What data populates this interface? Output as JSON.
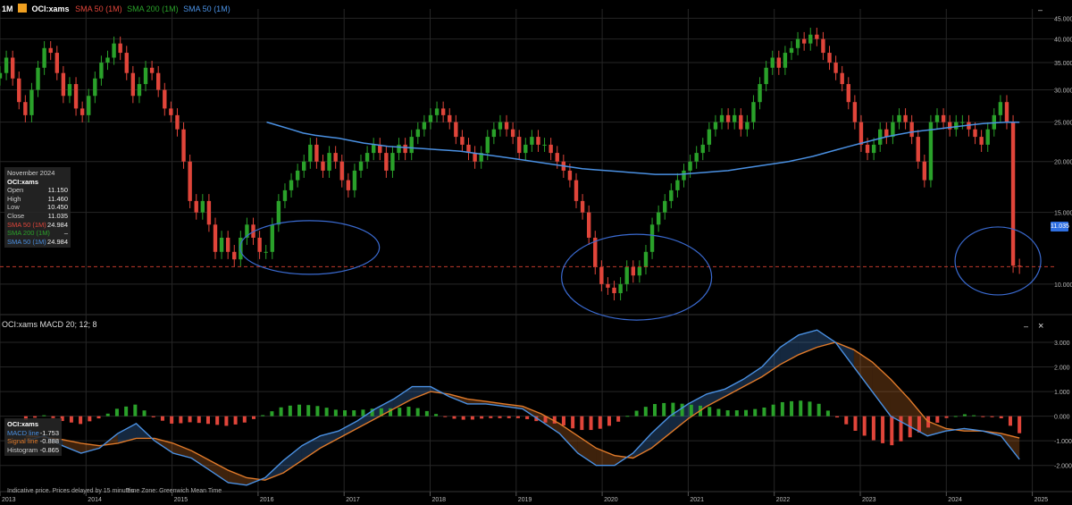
{
  "header": {
    "interval": "1M",
    "logo": "Euronext",
    "symbol": "OCI:xams",
    "sma50_red": "SMA 50 (1M)",
    "sma200": "SMA 200 (1M)",
    "sma50_blue": "SMA 50 (1M)",
    "collapse_btn": "–"
  },
  "info_box": {
    "date": "November 2024",
    "symbol": "OCI:xams",
    "rows": [
      {
        "label": "Open",
        "value": "11.150",
        "color": "#cccccc"
      },
      {
        "label": "High",
        "value": "11.460",
        "color": "#cccccc"
      },
      {
        "label": "Low",
        "value": "10.450",
        "color": "#cccccc"
      },
      {
        "label": "Close",
        "value": "11.035",
        "color": "#cccccc"
      },
      {
        "label": "SMA 50 (1M)",
        "value": "24.984",
        "color": "#e0453a"
      },
      {
        "label": "SMA 200 (1M)",
        "value": "–",
        "color": "#2aa12a"
      },
      {
        "label": "SMA 50 (1M)",
        "value": "24.984",
        "color": "#4a90e2"
      }
    ]
  },
  "price_tag": "11.035",
  "macd_header": {
    "title": "OCI:xams  MACD 20; 12; 8",
    "collapse_btn": "–",
    "close_btn": "×"
  },
  "macd_box": {
    "symbol": "OCI:xams",
    "rows": [
      {
        "label": "MACD line",
        "value": "-1.753",
        "color": "#4a90e2"
      },
      {
        "label": "Signal line",
        "value": "-0.888",
        "color": "#e07a2a"
      },
      {
        "label": "Histogram",
        "value": "-0.865",
        "color": "#cccccc"
      }
    ]
  },
  "footer": {
    "note": "Indicative price. Prices delayed by 15 minutes",
    "tz": "Time Zone: Greenwich Mean Time"
  },
  "colors": {
    "up": "#2aa12a",
    "down": "#e0453a",
    "sma": "#4a90e2",
    "signal": "#e07a2a",
    "ellipse": "#3a6ad0",
    "grid": "#262626"
  },
  "chart_data": [
    {
      "type": "candlestick",
      "interval": "monthly",
      "y_ticks": [
        "10.000",
        "15.000",
        "20.000",
        "25.000",
        "30.000",
        "35.000",
        "40.000",
        "45.000"
      ],
      "x_ticks": [
        "2013",
        "2014",
        "2015",
        "2016",
        "2017",
        "2018",
        "2019",
        "2020",
        "2021",
        "2022",
        "2023",
        "2024",
        "2025"
      ],
      "ylim": [
        8.5,
        46
      ],
      "scale": "log",
      "last_close": 11.035,
      "close_series": [
        33,
        36,
        32,
        28,
        26,
        30,
        34,
        38,
        37,
        33,
        29,
        31,
        27,
        26,
        29,
        32,
        35,
        36,
        39,
        37,
        33,
        29,
        31,
        34,
        33,
        30,
        27,
        26,
        24,
        20,
        16,
        15,
        16,
        14,
        12,
        13,
        12,
        11.5,
        13,
        14,
        13,
        12,
        12,
        14,
        16,
        17,
        18,
        19,
        20,
        22,
        20,
        19,
        21,
        20,
        18,
        17,
        19,
        20,
        21,
        22,
        21,
        19,
        21,
        22,
        21,
        23,
        24,
        25,
        26,
        27,
        26,
        25,
        23,
        22,
        21,
        20,
        21,
        23,
        24,
        25,
        24,
        23,
        21,
        22,
        23,
        22,
        22,
        21,
        20,
        19,
        18,
        16,
        15,
        13,
        11,
        10,
        9.8,
        9.5,
        10,
        11,
        10.5,
        11,
        12,
        14,
        15,
        16,
        17,
        18,
        19,
        20,
        21,
        22,
        24,
        25,
        26,
        25,
        26,
        24,
        25,
        28,
        31,
        34,
        36,
        34,
        37,
        38,
        40,
        39,
        41,
        40,
        37,
        35,
        33,
        31,
        28,
        25,
        22,
        21,
        22,
        24,
        23,
        25,
        26,
        25,
        23,
        20,
        18,
        25,
        26,
        25,
        24,
        25,
        25,
        24,
        23,
        22,
        24,
        26,
        28,
        25,
        11.1,
        11.035
      ],
      "sma50_series_from_2017": [
        25,
        24.5,
        24,
        23.5,
        23.2,
        23,
        22.8,
        22.5,
        22.2,
        22,
        21.8,
        21.7,
        21.6,
        21.5,
        21.4,
        21.3,
        21.2,
        21,
        20.8,
        20.6,
        20.4,
        20.2,
        20,
        19.8,
        19.6,
        19.4,
        19.2,
        19.1,
        19,
        18.9,
        18.8,
        18.7,
        18.6,
        18.6,
        18.6,
        18.7,
        18.8,
        18.9,
        19,
        19.2,
        19.4,
        19.6,
        19.8,
        20,
        20.3,
        20.6,
        21,
        21.4,
        21.8,
        22.2,
        22.6,
        23,
        23.3,
        23.6,
        23.8,
        24,
        24.2,
        24.4,
        24.6,
        24.8,
        24.9,
        25,
        24.984
      ],
      "annotations": [
        "ellipse around 2016 lows",
        "ellipse around 2020 lows",
        "ellipse around November 2024 low"
      ]
    },
    {
      "type": "macd",
      "params": "20; 12; 8",
      "y_ticks": [
        "-2.000",
        "-1.000",
        "0.000",
        "1.000",
        "2.000",
        "3.000"
      ],
      "ylim": [
        -2.7,
        3.4
      ],
      "macd_series": [
        -1,
        -0.8,
        -1.2,
        -1.5,
        -1.3,
        -0.7,
        -0.3,
        -1,
        -1.5,
        -1.7,
        -2.2,
        -2.7,
        -2.8,
        -2.5,
        -1.8,
        -1.2,
        -0.8,
        -0.6,
        -0.2,
        0.3,
        0.7,
        1.2,
        1.2,
        0.8,
        0.5,
        0.5,
        0.4,
        0.3,
        -0.2,
        -0.7,
        -1.5,
        -2,
        -2,
        -1.5,
        -0.7,
        0,
        0.5,
        0.9,
        1.1,
        1.5,
        2,
        2.8,
        3.3,
        3.5,
        3,
        2,
        1,
        0,
        -0.4,
        -0.8,
        -0.6,
        -0.5,
        -0.6,
        -0.8,
        -1.753
      ],
      "signal_series": [
        -0.8,
        -0.85,
        -0.95,
        -1.1,
        -1.2,
        -1.1,
        -0.9,
        -0.9,
        -1.1,
        -1.4,
        -1.8,
        -2.2,
        -2.5,
        -2.6,
        -2.3,
        -1.8,
        -1.3,
        -0.9,
        -0.5,
        -0.1,
        0.3,
        0.7,
        1,
        0.9,
        0.7,
        0.6,
        0.5,
        0.4,
        0.1,
        -0.3,
        -0.8,
        -1.3,
        -1.6,
        -1.7,
        -1.3,
        -0.7,
        -0.1,
        0.4,
        0.8,
        1.2,
        1.6,
        2.1,
        2.5,
        2.8,
        3,
        2.7,
        2.2,
        1.5,
        0.7,
        -0.2,
        -0.5,
        -0.6,
        -0.6,
        -0.7,
        -0.888
      ],
      "last_values": {
        "macd": -1.753,
        "signal": -0.888,
        "histogram": -0.865
      }
    }
  ]
}
